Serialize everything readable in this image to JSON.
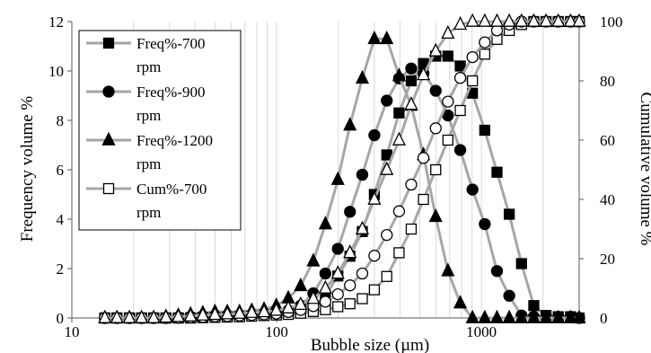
{
  "chart_data": {
    "type": "line",
    "xlabel": "Bubble size (µm)",
    "ylabel": "Frequency volume %",
    "y2label": "Cumulative volume %",
    "x_scale": "log",
    "xlim": [
      10,
      3000
    ],
    "ylim": [
      0,
      12
    ],
    "y2lim": [
      0,
      100
    ],
    "x_ticks": [
      {
        "value": 10,
        "label": "10"
      },
      {
        "value": 100,
        "label": "100"
      },
      {
        "value": 1000,
        "label": "1000"
      }
    ],
    "y_ticks": [
      {
        "value": 0,
        "label": "0"
      },
      {
        "value": 2,
        "label": "2"
      },
      {
        "value": 4,
        "label": "4"
      },
      {
        "value": 6,
        "label": "6"
      },
      {
        "value": 8,
        "label": "8"
      },
      {
        "value": 10,
        "label": "10"
      },
      {
        "value": 12,
        "label": "12"
      }
    ],
    "y2_ticks": [
      {
        "value": 0,
        "label": "0"
      },
      {
        "value": 20,
        "label": "20"
      },
      {
        "value": 40,
        "label": "40"
      },
      {
        "value": 60,
        "label": "60"
      },
      {
        "value": 80,
        "label": "80"
      },
      {
        "value": 100,
        "label": "100"
      }
    ],
    "grid": "vertical-minor",
    "legend_position": "top-left",
    "series": [
      {
        "name": "Freq%-700 rpm",
        "axis": "left",
        "marker": "square-filled",
        "line_color": "#a6a6a6",
        "x": [
          14.5,
          16.6,
          19.1,
          21.9,
          25.1,
          28.8,
          33.1,
          38,
          43.6,
          50,
          57.4,
          65.9,
          75.6,
          86.8,
          99.6,
          114,
          131,
          151,
          173,
          199,
          228,
          262,
          300,
          345,
          396,
          454,
          521,
          598,
          686,
          788,
          904,
          1038,
          1191,
          1367,
          1569,
          1801,
          2067,
          2372,
          2723,
          3000
        ],
        "values": [
          0,
          0,
          0,
          0,
          0,
          0,
          0,
          0,
          0.02,
          0.03,
          0.05,
          0.08,
          0.1,
          0.12,
          0.15,
          0.2,
          0.3,
          0.45,
          0.9,
          1.7,
          2.5,
          3.5,
          5,
          6.6,
          8.3,
          9.6,
          10.3,
          10.6,
          10.6,
          10.2,
          9.1,
          7.6,
          5.9,
          4.2,
          2.2,
          0.5,
          0.1,
          0.05,
          0.05,
          0
        ]
      },
      {
        "name": "Freq%-900 rpm",
        "axis": "left",
        "marker": "circle-filled",
        "line_color": "#a6a6a6",
        "x": [
          14.5,
          16.6,
          19.1,
          21.9,
          25.1,
          28.8,
          33.1,
          38,
          43.6,
          50,
          57.4,
          65.9,
          75.6,
          86.8,
          99.6,
          114,
          131,
          151,
          173,
          199,
          228,
          262,
          300,
          345,
          396,
          454,
          521,
          598,
          686,
          788,
          904,
          1038,
          1191,
          1367,
          1569,
          1801,
          2067,
          2372,
          2723,
          3000
        ],
        "values": [
          0,
          0,
          0,
          0,
          0,
          0,
          0.02,
          0.05,
          0.08,
          0.1,
          0.1,
          0.1,
          0.12,
          0.15,
          0.2,
          0.3,
          0.5,
          1,
          1.8,
          2.8,
          4.3,
          5.8,
          7.4,
          8.8,
          9.7,
          10.1,
          9.9,
          9.2,
          8.2,
          6.8,
          5.2,
          3.8,
          1.9,
          0.9,
          0.1,
          0.05,
          0.05,
          0.05,
          0.05,
          0
        ]
      },
      {
        "name": "Freq%-1200 rpm",
        "axis": "left",
        "marker": "triangle-filled",
        "line_color": "#a6a6a6",
        "x": [
          14.5,
          16.6,
          19.1,
          21.9,
          25.1,
          28.8,
          33.1,
          38,
          43.6,
          50,
          57.4,
          65.9,
          75.6,
          86.8,
          99.6,
          114,
          131,
          151,
          173,
          199,
          228,
          262,
          300,
          345,
          396,
          454,
          521,
          598,
          686,
          788,
          904,
          1038,
          1191,
          1367,
          1569,
          1801,
          2067,
          2372,
          2723,
          3000
        ],
        "values": [
          0,
          0,
          0,
          0,
          0,
          0.05,
          0.1,
          0.15,
          0.2,
          0.25,
          0.25,
          0.25,
          0.3,
          0.35,
          0.5,
          0.8,
          1.3,
          2.3,
          3.8,
          5.6,
          7.8,
          9.7,
          11.3,
          11.3,
          9.8,
          8.6,
          6.6,
          4.1,
          1.9,
          0.6,
          0,
          0,
          0,
          0,
          0,
          0,
          0,
          0,
          0,
          0
        ]
      },
      {
        "name": "Cum%-700 rpm",
        "axis": "right",
        "marker": "square-open",
        "line_color": "#a6a6a6",
        "x": [
          14.5,
          16.6,
          19.1,
          21.9,
          25.1,
          28.8,
          33.1,
          38,
          43.6,
          50,
          57.4,
          65.9,
          75.6,
          86.8,
          99.6,
          114,
          131,
          151,
          173,
          199,
          228,
          262,
          300,
          345,
          396,
          454,
          521,
          598,
          686,
          788,
          904,
          1038,
          1191,
          1367,
          1569,
          1801,
          2067,
          2372,
          2723,
          3000
        ],
        "values": [
          0,
          0,
          0,
          0,
          0,
          0,
          0,
          0,
          0.1,
          0.2,
          0.3,
          0.4,
          0.6,
          0.8,
          1,
          1.2,
          1.6,
          2.2,
          2.8,
          3.8,
          4.8,
          6.5,
          9.5,
          14,
          22,
          30,
          40,
          50,
          60,
          70,
          80,
          89,
          94,
          97,
          99,
          100,
          100,
          100,
          100,
          100
        ]
      },
      {
        "name": "",
        "axis": "right",
        "marker": "circle-open",
        "line_color": "#a6a6a6",
        "x": [
          14.5,
          16.6,
          19.1,
          21.9,
          25.1,
          28.8,
          33.1,
          38,
          43.6,
          50,
          57.4,
          65.9,
          75.6,
          86.8,
          99.6,
          114,
          131,
          151,
          173,
          199,
          228,
          262,
          300,
          345,
          396,
          454,
          521,
          598,
          686,
          788,
          904,
          1038,
          1191,
          1367,
          1569,
          1801,
          2067,
          2372,
          2723,
          3000
        ],
        "values": [
          0,
          0,
          0,
          0,
          0,
          0,
          0.1,
          0.2,
          0.3,
          0.5,
          0.6,
          0.8,
          1,
          1.2,
          1.5,
          2,
          2.7,
          4,
          5.5,
          8,
          11,
          15,
          21,
          28,
          36,
          45,
          54,
          64,
          73,
          81,
          88,
          93,
          97,
          99,
          100,
          100,
          100,
          100,
          100,
          100
        ]
      },
      {
        "name": "",
        "axis": "right",
        "marker": "triangle-open",
        "line_color": "#a6a6a6",
        "x": [
          14.5,
          16.6,
          19.1,
          21.9,
          25.1,
          28.8,
          33.1,
          38,
          43.6,
          50,
          57.4,
          65.9,
          75.6,
          86.8,
          99.6,
          114,
          131,
          151,
          173,
          199,
          228,
          262,
          300,
          345,
          396,
          454,
          521,
          598,
          686,
          788,
          904,
          1038,
          1191,
          1367,
          1569,
          1801,
          2067,
          2372,
          2723,
          3000
        ],
        "values": [
          0,
          0,
          0,
          0,
          0,
          0.2,
          0.4,
          0.6,
          0.9,
          1.1,
          1.3,
          1.5,
          1.8,
          2,
          2.5,
          3.3,
          4.5,
          6.5,
          10,
          15,
          22,
          30,
          40,
          50,
          60,
          72,
          82,
          90,
          96,
          99,
          100,
          100,
          100,
          100,
          100,
          100,
          100,
          100,
          100,
          100
        ]
      }
    ],
    "legend": [
      {
        "line1": "Freq%-700",
        "line2": "rpm",
        "marker": "square-filled"
      },
      {
        "line1": "Freq%-900",
        "line2": "rpm",
        "marker": "circle-filled"
      },
      {
        "line1": "Freq%-1200",
        "line2": "rpm",
        "marker": "triangle-filled"
      },
      {
        "line1": "Cum%-700",
        "line2": "rpm",
        "marker": "square-open"
      }
    ]
  }
}
